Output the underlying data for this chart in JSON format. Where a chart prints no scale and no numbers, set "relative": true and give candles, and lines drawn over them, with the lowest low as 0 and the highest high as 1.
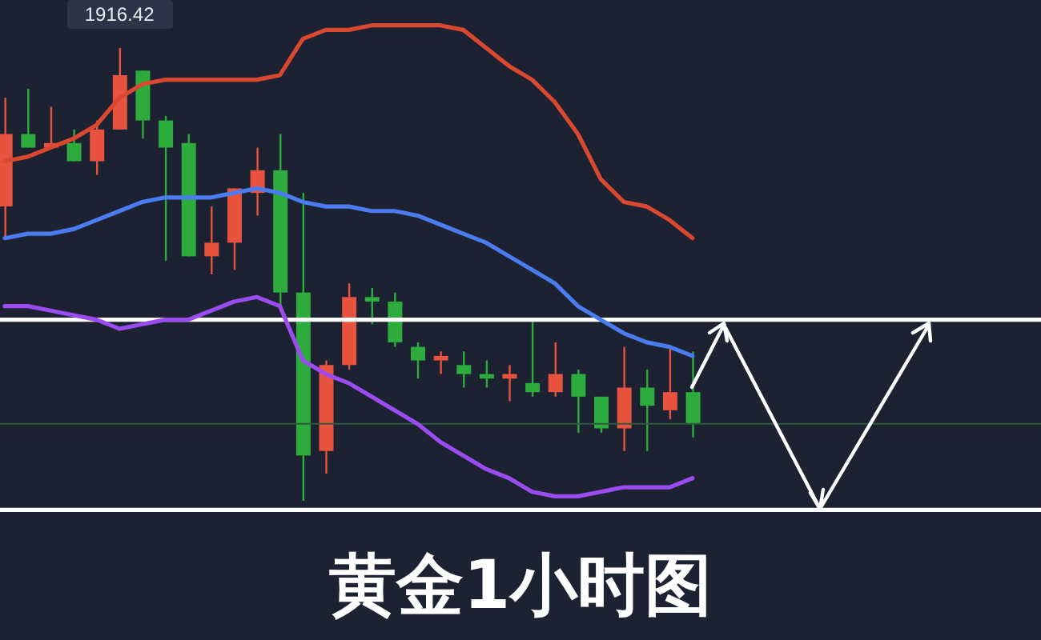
{
  "chart_data": {
    "type": "candlestick",
    "title": "黄金1小时图",
    "relative": true,
    "categories": [
      null,
      null,
      null,
      null,
      null,
      null,
      null,
      null,
      null,
      null,
      null,
      null,
      null,
      null,
      null,
      null,
      null,
      null,
      null,
      null,
      null,
      null,
      null,
      null,
      null,
      null,
      null,
      null,
      null,
      null,
      null
    ],
    "ohlc": [
      [
        0.65,
        0.89,
        0.58,
        0.81
      ],
      [
        0.81,
        0.91,
        0.78,
        0.78
      ],
      [
        0.78,
        0.87,
        0.78,
        0.79
      ],
      [
        0.79,
        0.82,
        0.75,
        0.75
      ],
      [
        0.75,
        0.84,
        0.72,
        0.82
      ],
      [
        0.82,
        1,
        0.82,
        0.94
      ],
      [
        0.95,
        0.95,
        0.8,
        0.84
      ],
      [
        0.84,
        0.85,
        0.53,
        0.78
      ],
      [
        0.79,
        0.81,
        0.54,
        0.54
      ],
      [
        0.54,
        0.65,
        0.5,
        0.57
      ],
      [
        0.57,
        0.69,
        0.51,
        0.69
      ],
      [
        0.68,
        0.78,
        0.63,
        0.73
      ],
      [
        0.73,
        0.81,
        0.43,
        0.46
      ],
      [
        0.46,
        0.68,
        0,
        0.1
      ],
      [
        0.11,
        0.31,
        0.06,
        0.3
      ],
      [
        0.3,
        0.48,
        0.29,
        0.45
      ],
      [
        0.45,
        0.47,
        0.39,
        0.44
      ],
      [
        0.44,
        0.46,
        0.34,
        0.35
      ],
      [
        0.34,
        0.35,
        0.27,
        0.31
      ],
      [
        0.31,
        0.33,
        0.28,
        0.32
      ],
      [
        0.3,
        0.33,
        0.25,
        0.28
      ],
      [
        0.28,
        0.31,
        0.25,
        0.27
      ],
      [
        0.27,
        0.3,
        0.22,
        0.28
      ],
      [
        0.26,
        0.4,
        0.23,
        0.24
      ],
      [
        0.24,
        0.35,
        0.23,
        0.28
      ],
      [
        0.28,
        0.29,
        0.15,
        0.23
      ],
      [
        0.23,
        0.23,
        0.15,
        0.16
      ],
      [
        0.16,
        0.34,
        0.11,
        0.25
      ],
      [
        0.25,
        0.29,
        0.11,
        0.21
      ],
      [
        0.2,
        0.34,
        0.18,
        0.24
      ],
      [
        0.24,
        0.33,
        0.14,
        0.17
      ]
    ],
    "colors": [
      "#e8533f",
      "#2dab3c",
      "#e8533f",
      "#2dab3c",
      "#e8533f",
      "#e8533f",
      "#2dab3c",
      "#2dab3c",
      "#2dab3c",
      "#e8533f",
      "#e8533f",
      "#e8533f",
      "#2dab3c",
      "#2dab3c",
      "#e8533f",
      "#e8533f",
      "#2dab3c",
      "#2dab3c",
      "#2dab3c",
      "#e8533f",
      "#2dab3c",
      "#2dab3c",
      "#e8533f",
      "#2dab3c",
      "#e8533f",
      "#2dab3c",
      "#2dab3c",
      "#e8533f",
      "#2dab3c",
      "#e8533f",
      "#2dab3c"
    ],
    "series": [
      {
        "type": "line",
        "color": "#d9482f",
        "values": [
          0.75,
          0.76,
          0.78,
          0.8,
          0.83,
          0.89,
          0.92,
          0.93,
          0.93,
          0.93,
          0.93,
          0.93,
          0.94,
          1.02,
          1.04,
          1.04,
          1.05,
          1.05,
          1.05,
          1.05,
          1.04,
          1.0,
          0.96,
          0.93,
          0.88,
          0.81,
          0.71,
          0.66,
          0.65,
          0.62,
          0.58
        ]
      },
      {
        "type": "line",
        "color": "#4a7cf0",
        "values": [
          0.58,
          0.59,
          0.59,
          0.6,
          0.62,
          0.64,
          0.66,
          0.67,
          0.67,
          0.67,
          0.68,
          0.69,
          0.68,
          0.66,
          0.65,
          0.65,
          0.64,
          0.64,
          0.63,
          0.61,
          0.59,
          0.57,
          0.54,
          0.51,
          0.48,
          0.43,
          0.4,
          0.37,
          0.35,
          0.34,
          0.32
        ]
      },
      {
        "type": "line",
        "color": "#9b4cf0",
        "values": [
          0.43,
          0.43,
          0.42,
          0.41,
          0.4,
          0.38,
          0.39,
          0.4,
          0.4,
          0.42,
          0.44,
          0.45,
          0.43,
          0.31,
          0.28,
          0.26,
          0.23,
          0.2,
          0.17,
          0.13,
          0.1,
          0.07,
          0.05,
          0.02,
          0.01,
          0.01,
          0.02,
          0.03,
          0.03,
          0.03,
          0.05
        ]
      }
    ],
    "ref_lines": [
      {
        "axis": "y",
        "value": 0.4,
        "color": "#ffffff"
      },
      {
        "axis": "y",
        "value": -0.02,
        "color": "#ffffff"
      },
      {
        "axis": "y",
        "value": 0.17,
        "color": "#2f5a3c"
      }
    ],
    "annotations": [
      {
        "text": "1916.42",
        "y": 1
      }
    ]
  }
}
